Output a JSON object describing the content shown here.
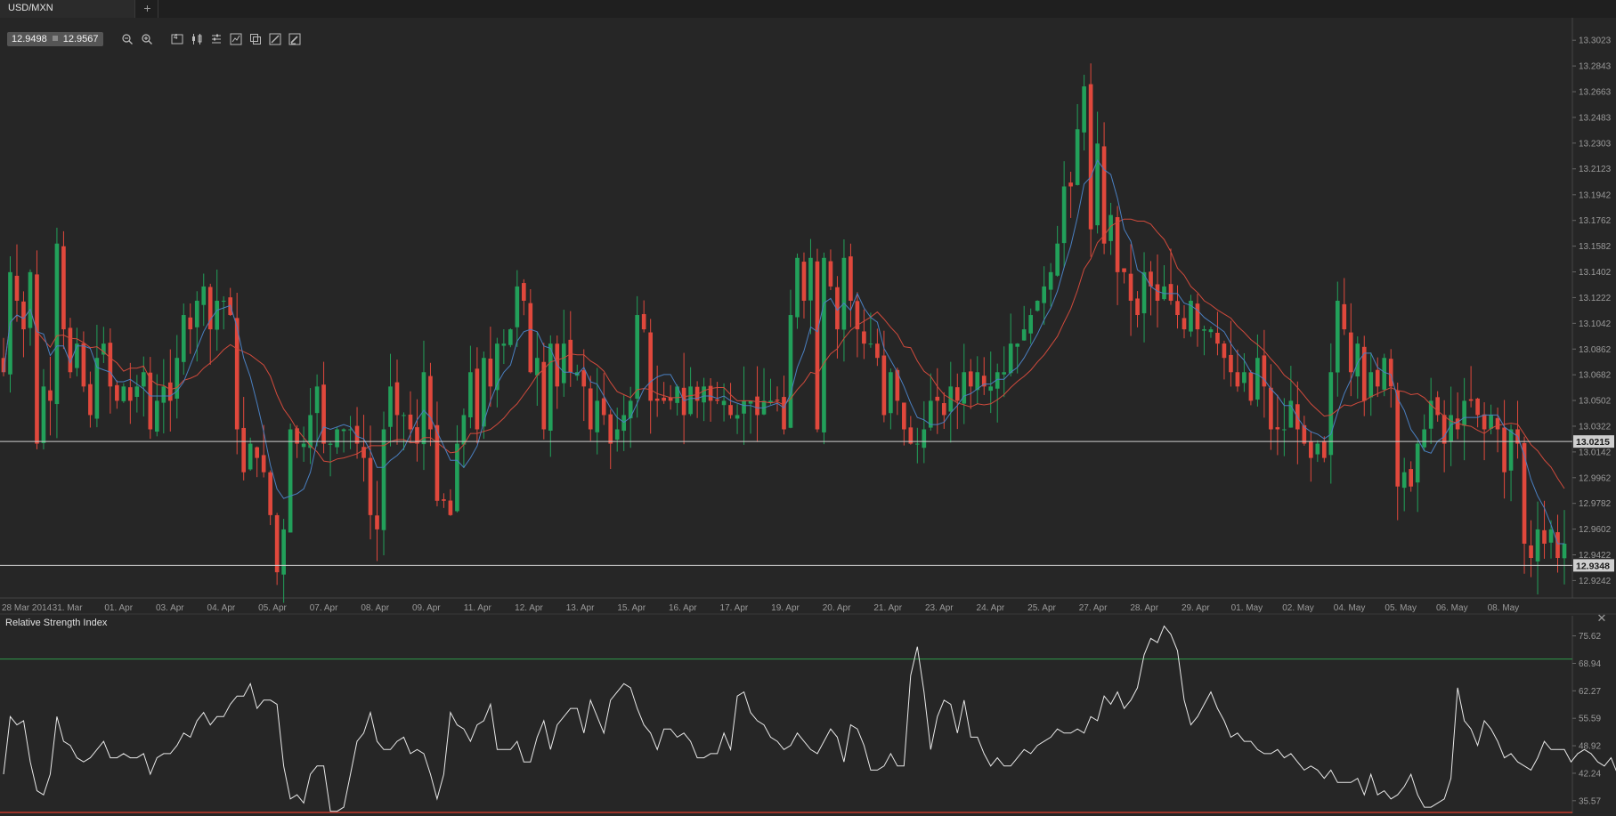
{
  "tab": {
    "symbol": "USD/MXN",
    "add_label": "+"
  },
  "quote": {
    "bid": "12.9498",
    "ask": "12.9567"
  },
  "toolbar": {
    "icons": [
      "zoom-out-icon",
      "zoom-in-icon",
      "timeframe-icon",
      "candles-icon",
      "indicators-icon",
      "chart-type-icon",
      "objects-icon",
      "draw-icon",
      "pen-icon"
    ],
    "timeframe_label": "4"
  },
  "chart_data": [
    {
      "type": "candlestick",
      "symbol": "USD/MXN",
      "ylim": [
        12.912,
        13.318
      ],
      "y_ticks": [
        "12.9242",
        "12.9422",
        "12.9602",
        "12.9782",
        "12.9962",
        "13.0142",
        "13.0322",
        "13.0502",
        "13.0682",
        "13.0862",
        "13.1042",
        "13.1222",
        "13.1402",
        "13.1582",
        "13.1762",
        "13.1942",
        "13.2123",
        "13.2303",
        "13.2483",
        "13.2663",
        "13.2843",
        "13.3023"
      ],
      "x_ticks": [
        "28 Mar 2014",
        "31. Mar",
        "01. Apr",
        "03. Apr",
        "04. Apr",
        "05. Apr",
        "07. Apr",
        "08. Apr",
        "09. Apr",
        "11. Apr",
        "12. Apr",
        "13. Apr",
        "15. Apr",
        "16. Apr",
        "17. Apr",
        "19. Apr",
        "20. Apr",
        "21. Apr",
        "23. Apr",
        "24. Apr",
        "25. Apr",
        "27. Apr",
        "28. Apr",
        "29. Apr",
        "01. May",
        "02. May",
        "04. May",
        "05. May",
        "06. May",
        "08. May"
      ],
      "price_lines": [
        {
          "label": "13.0215",
          "value": 13.0215
        },
        {
          "label": "12.9348",
          "value": 12.9348
        }
      ],
      "up_color": "#22a05a",
      "down_color": "#e0483c",
      "ma_fast_color": "#4a7fc0",
      "ma_slow_color": "#d04a3c",
      "close": [
        13.07,
        13.14,
        13.12,
        13.1,
        13.14,
        13.02,
        13.06,
        13.05,
        13.16,
        13.1,
        13.07,
        13.09,
        13.06,
        13.04,
        13.08,
        13.09,
        13.06,
        13.05,
        13.06,
        13.05,
        13.06,
        13.07,
        13.03,
        13.05,
        13.06,
        13.05,
        13.08,
        13.11,
        13.1,
        13.12,
        13.13,
        13.1,
        13.12,
        13.12,
        13.11,
        13.03,
        13.0,
        13.02,
        13.01,
        13.0,
        12.97,
        12.93,
        12.96,
        13.03,
        13.02,
        13.02,
        13.04,
        13.06,
        13.02,
        13.02,
        13.03,
        13.03,
        13.03,
        13.02,
        13.01,
        12.97,
        12.96,
        13.03,
        13.06,
        13.04,
        13.04,
        13.03,
        13.02,
        13.07,
        13.03,
        12.98,
        12.98,
        12.97,
        13.02,
        13.04,
        13.07,
        13.03,
        13.08,
        13.06,
        13.09,
        13.09,
        13.1,
        13.13,
        13.12,
        13.07,
        13.08,
        13.03,
        13.09,
        13.06,
        13.09,
        13.07,
        13.07,
        13.06,
        13.03,
        13.05,
        13.04,
        13.02,
        13.03,
        13.04,
        13.05,
        13.11,
        13.1,
        13.05,
        13.05,
        13.05,
        13.05,
        13.06,
        13.04,
        13.06,
        13.05,
        13.06,
        13.05,
        13.05,
        13.05,
        13.04,
        13.04,
        13.05,
        13.05,
        13.04,
        13.05,
        13.05,
        13.05,
        13.03,
        13.11,
        13.15,
        13.12,
        13.15,
        13.03,
        13.15,
        13.13,
        13.1,
        13.15,
        13.12,
        13.1,
        13.09,
        13.09,
        13.08,
        13.04,
        13.07,
        13.05,
        13.03,
        13.02,
        13.02,
        13.03,
        13.05,
        13.05,
        13.04,
        13.06,
        13.05,
        13.07,
        13.06,
        13.07,
        13.06,
        13.06,
        13.07,
        13.07,
        13.09,
        13.09,
        13.1,
        13.11,
        13.12,
        13.13,
        13.14,
        13.16,
        13.2,
        13.2,
        13.24,
        13.27,
        13.17,
        13.23,
        13.16,
        13.18,
        13.14,
        13.14,
        13.12,
        13.11,
        13.14,
        13.13,
        13.12,
        13.13,
        13.12,
        13.11,
        13.1,
        13.12,
        13.1,
        13.1,
        13.1,
        13.09,
        13.08,
        13.07,
        13.06,
        13.07,
        13.05,
        13.08,
        13.06,
        13.03,
        13.03,
        13.03,
        13.05,
        13.03,
        13.02,
        13.01,
        13.02,
        13.01,
        13.07,
        13.12,
        13.1,
        13.07,
        13.09,
        13.05,
        13.07,
        13.06,
        13.08,
        13.06,
        12.99,
        13.0,
        12.99,
        13.02,
        13.03,
        13.05,
        13.04,
        13.02,
        13.04,
        13.03,
        13.05,
        13.05,
        13.04,
        13.03,
        13.04,
        13.03,
        13.0,
        13.03,
        13.02,
        12.95,
        12.94,
        12.96,
        12.95,
        12.96,
        12.94,
        12.95
      ]
    },
    {
      "type": "line",
      "title": "Relative Strength Index",
      "ylim": [
        32.5,
        80.5
      ],
      "y_ticks": [
        "35.57",
        "42.24",
        "48.92",
        "55.59",
        "62.27",
        "68.94",
        "75.62"
      ],
      "overbought": 70,
      "oversold": 30,
      "line_color": "#e8e8e8",
      "values": [
        42,
        56,
        54,
        55,
        45,
        38,
        37,
        42,
        56,
        50,
        49,
        46,
        45,
        46,
        48,
        50,
        46,
        46,
        47,
        46,
        46,
        47,
        42,
        46,
        47,
        47,
        49,
        52,
        51,
        55,
        57,
        54,
        56,
        56,
        59,
        61,
        61,
        64,
        58,
        60,
        60,
        59,
        44,
        36,
        37,
        35,
        42,
        44,
        44,
        33,
        33,
        34,
        42,
        50,
        52,
        57,
        50,
        48,
        48,
        50,
        51,
        47,
        48,
        47,
        42,
        36,
        42,
        57,
        54,
        53,
        50,
        54,
        55,
        59,
        48,
        48,
        48,
        50,
        45,
        45,
        51,
        55,
        48,
        54,
        56,
        58,
        58,
        52,
        60,
        56,
        52,
        60,
        62,
        64,
        63,
        58,
        54,
        52,
        48,
        53,
        53,
        51,
        52,
        50,
        46,
        46,
        47,
        47,
        52,
        48,
        61,
        62,
        57,
        55,
        54,
        51,
        50,
        48,
        49,
        52,
        50,
        48,
        47,
        50,
        53,
        51,
        45,
        54,
        53,
        49,
        43,
        43,
        44,
        47,
        44,
        44,
        66,
        73,
        62,
        48,
        56,
        60,
        59,
        52,
        60,
        51,
        51,
        47,
        44,
        46,
        44,
        44,
        46,
        48,
        47,
        49,
        50,
        51,
        53,
        52,
        52,
        53,
        52,
        56,
        55,
        61,
        59,
        62,
        58,
        60,
        63,
        71,
        75,
        74,
        78,
        76,
        72,
        60,
        54,
        56,
        59,
        62,
        58,
        55,
        51,
        52,
        50,
        50,
        48,
        47,
        47,
        48,
        46,
        47,
        45,
        43,
        44,
        43,
        41,
        43,
        40,
        40,
        40,
        41,
        37,
        42,
        37,
        38,
        36,
        37,
        39,
        42,
        37,
        34,
        34,
        35,
        36,
        41,
        63,
        55,
        53,
        49,
        55,
        53,
        50,
        46,
        47,
        45,
        44,
        43,
        46,
        50,
        48,
        48,
        48,
        45,
        47,
        48,
        47,
        45,
        44,
        46,
        42,
        38,
        36,
        36,
        35,
        36,
        35,
        37
      ]
    }
  ]
}
